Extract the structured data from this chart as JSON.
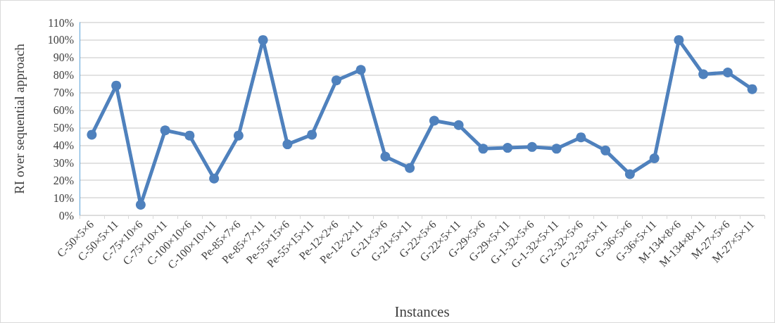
{
  "chart_data": {
    "type": "line",
    "xlabel": "Instances",
    "ylabel": "RI over sequential approach",
    "categories": [
      "C-50×5×6",
      "C-50×5×11",
      "C-75×10×6",
      "C-75×10×11",
      "C-100×10×6",
      "C-100×10×11",
      "Pe-85×7×6",
      "Pe-85×7×11",
      "Pe-55×15×6",
      "Pe-55×15×11",
      "Pe-12×2×6",
      "Pe-12×2×11",
      "G-21×5×6",
      "G-21×5×11",
      "G-22×5×6",
      "G-22×5×11",
      "G-29×5×6",
      "G-29×5×11",
      "G-1-32×5×6",
      "G-1-32×5×11",
      "G-2-32×5×6",
      "G-2-32×5×11",
      "G-36×5×6",
      "G-36×5×11",
      "M-134×8×6",
      "M-134×8×11",
      "M-27×5×6",
      "M-27×5×11"
    ],
    "series": [
      {
        "color": "#4f81bd",
        "values": [
          46,
          74,
          6,
          48.5,
          45.5,
          21,
          45.5,
          100,
          40.5,
          46,
          77,
          83,
          33.5,
          27,
          54,
          51.5,
          38,
          38.5,
          39,
          38,
          44.5,
          37,
          23.5,
          32.5,
          100,
          80.5,
          81.5,
          72
        ]
      }
    ],
    "ylim": [
      0,
      110
    ],
    "yticks": [
      {
        "value": 0,
        "label": "0%"
      },
      {
        "value": 10,
        "label": "10%"
      },
      {
        "value": 20,
        "label": "20%"
      },
      {
        "value": 30,
        "label": "30%"
      },
      {
        "value": 40,
        "label": "40%"
      },
      {
        "value": 50,
        "label": "50%"
      },
      {
        "value": 60,
        "label": "60%"
      },
      {
        "value": 70,
        "label": "70%"
      },
      {
        "value": 80,
        "label": "80%"
      },
      {
        "value": 90,
        "label": "90%"
      },
      {
        "value": 100,
        "label": "100%"
      },
      {
        "value": 110,
        "label": "110%"
      }
    ],
    "grid": "y",
    "marker": "circle",
    "line_style": "solid"
  }
}
